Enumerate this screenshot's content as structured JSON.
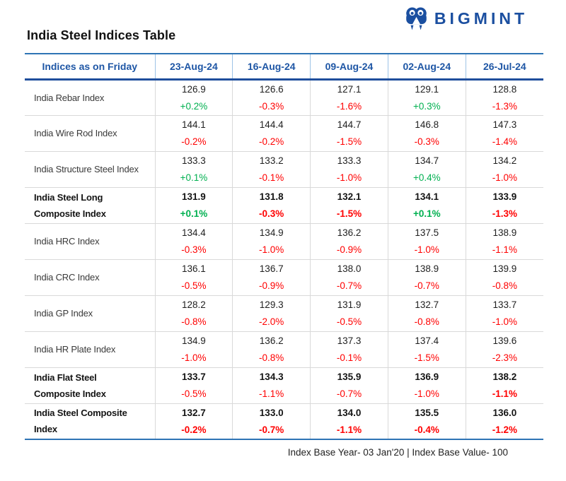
{
  "brand": {
    "name": "BIGMINT",
    "logo_color": "#1b4fa0"
  },
  "colors": {
    "header_blue": "#1e56a5",
    "border_blue_dark": "#1f4e9c",
    "border_blue": "#2e74b5",
    "grid_gray": "#d9d9d9",
    "positive_green": "#00b050",
    "negative_red": "#ff0000"
  },
  "chart_data": {
    "type": "table",
    "title": "India Steel Indices Table",
    "note": "Index Base Year- 03 Jan'20 | Index Base Value- 100",
    "columns": [
      "Indices as on Friday",
      "23-Aug-24",
      "16-Aug-24",
      "09-Aug-24",
      "02-Aug-24",
      "26-Jul-24"
    ],
    "rows": [
      {
        "label_lines": [
          "India Rebar Index"
        ],
        "bold": false,
        "cells": [
          {
            "value": "126.9",
            "change": "+0.2%",
            "trend": "up",
            "bold_change": false
          },
          {
            "value": "126.6",
            "change": "-0.3%",
            "trend": "down",
            "bold_change": false
          },
          {
            "value": "127.1",
            "change": "-1.6%",
            "trend": "down",
            "bold_change": false
          },
          {
            "value": "129.1",
            "change": "+0.3%",
            "trend": "up",
            "bold_change": false
          },
          {
            "value": "128.8",
            "change": "-1.3%",
            "trend": "down",
            "bold_change": false
          }
        ]
      },
      {
        "label_lines": [
          "India Wire Rod Index"
        ],
        "bold": false,
        "cells": [
          {
            "value": "144.1",
            "change": "-0.2%",
            "trend": "down",
            "bold_change": false
          },
          {
            "value": "144.4",
            "change": "-0.2%",
            "trend": "down",
            "bold_change": false
          },
          {
            "value": "144.7",
            "change": "-1.5%",
            "trend": "down",
            "bold_change": false
          },
          {
            "value": "146.8",
            "change": "-0.3%",
            "trend": "down",
            "bold_change": false
          },
          {
            "value": "147.3",
            "change": "-1.4%",
            "trend": "down",
            "bold_change": false
          }
        ]
      },
      {
        "label_lines": [
          "India Structure Steel Index"
        ],
        "bold": false,
        "cells": [
          {
            "value": "133.3",
            "change": "+0.1%",
            "trend": "up",
            "bold_change": false
          },
          {
            "value": "133.2",
            "change": "-0.1%",
            "trend": "down",
            "bold_change": false
          },
          {
            "value": "133.3",
            "change": "-1.0%",
            "trend": "down",
            "bold_change": false
          },
          {
            "value": "134.7",
            "change": "+0.4%",
            "trend": "up",
            "bold_change": false
          },
          {
            "value": "134.2",
            "change": "-1.0%",
            "trend": "down",
            "bold_change": false
          }
        ]
      },
      {
        "label_lines": [
          "India Steel Long",
          "Composite Index"
        ],
        "bold": true,
        "cells": [
          {
            "value": "131.9",
            "change": "+0.1%",
            "trend": "up",
            "bold_change": true
          },
          {
            "value": "131.8",
            "change": "-0.3%",
            "trend": "down",
            "bold_change": true
          },
          {
            "value": "132.1",
            "change": "-1.5%",
            "trend": "down",
            "bold_change": true
          },
          {
            "value": "134.1",
            "change": "+0.1%",
            "trend": "up",
            "bold_change": true
          },
          {
            "value": "133.9",
            "change": "-1.3%",
            "trend": "down",
            "bold_change": true
          }
        ]
      },
      {
        "label_lines": [
          "India HRC Index"
        ],
        "bold": false,
        "cells": [
          {
            "value": "134.4",
            "change": "-0.3%",
            "trend": "down",
            "bold_change": false
          },
          {
            "value": "134.9",
            "change": "-1.0%",
            "trend": "down",
            "bold_change": false
          },
          {
            "value": "136.2",
            "change": "-0.9%",
            "trend": "down",
            "bold_change": false
          },
          {
            "value": "137.5",
            "change": "-1.0%",
            "trend": "down",
            "bold_change": false
          },
          {
            "value": "138.9",
            "change": "-1.1%",
            "trend": "down",
            "bold_change": false
          }
        ]
      },
      {
        "label_lines": [
          "India CRC Index"
        ],
        "bold": false,
        "cells": [
          {
            "value": "136.1",
            "change": "-0.5%",
            "trend": "down",
            "bold_change": false
          },
          {
            "value": "136.7",
            "change": "-0.9%",
            "trend": "down",
            "bold_change": false
          },
          {
            "value": "138.0",
            "change": "-0.7%",
            "trend": "down",
            "bold_change": false
          },
          {
            "value": "138.9",
            "change": "-0.7%",
            "trend": "down",
            "bold_change": false
          },
          {
            "value": "139.9",
            "change": "-0.8%",
            "trend": "down",
            "bold_change": false
          }
        ]
      },
      {
        "label_lines": [
          "India GP Index"
        ],
        "bold": false,
        "cells": [
          {
            "value": "128.2",
            "change": "-0.8%",
            "trend": "down",
            "bold_change": false
          },
          {
            "value": "129.3",
            "change": "-2.0%",
            "trend": "down",
            "bold_change": false
          },
          {
            "value": "131.9",
            "change": "-0.5%",
            "trend": "down",
            "bold_change": false
          },
          {
            "value": "132.7",
            "change": "-0.8%",
            "trend": "down",
            "bold_change": false
          },
          {
            "value": "133.7",
            "change": "-1.0%",
            "trend": "down",
            "bold_change": false
          }
        ]
      },
      {
        "label_lines": [
          "India HR Plate Index"
        ],
        "bold": false,
        "cells": [
          {
            "value": "134.9",
            "change": "-1.0%",
            "trend": "down",
            "bold_change": false
          },
          {
            "value": "136.2",
            "change": "-0.8%",
            "trend": "down",
            "bold_change": false
          },
          {
            "value": "137.3",
            "change": "-0.1%",
            "trend": "down",
            "bold_change": false
          },
          {
            "value": "137.4",
            "change": "-1.5%",
            "trend": "down",
            "bold_change": false
          },
          {
            "value": "139.6",
            "change": "-2.3%",
            "trend": "down",
            "bold_change": false
          }
        ]
      },
      {
        "label_lines": [
          "India Flat Steel",
          "Composite Index"
        ],
        "bold": true,
        "cells": [
          {
            "value": "133.7",
            "change": "-0.5%",
            "trend": "down",
            "bold_change": false
          },
          {
            "value": "134.3",
            "change": "-1.1%",
            "trend": "down",
            "bold_change": false
          },
          {
            "value": "135.9",
            "change": "-0.7%",
            "trend": "down",
            "bold_change": false
          },
          {
            "value": "136.9",
            "change": "-1.0%",
            "trend": "down",
            "bold_change": false
          },
          {
            "value": "138.2",
            "change": "-1.1%",
            "trend": "down",
            "bold_change": true
          }
        ]
      },
      {
        "label_lines": [
          "India Steel Composite",
          "Index"
        ],
        "bold": true,
        "cells": [
          {
            "value": "132.7",
            "change": "-0.2%",
            "trend": "down",
            "bold_change": true
          },
          {
            "value": "133.0",
            "change": "-0.7%",
            "trend": "down",
            "bold_change": true
          },
          {
            "value": "134.0",
            "change": "-1.1%",
            "trend": "down",
            "bold_change": true
          },
          {
            "value": "135.5",
            "change": "-0.4%",
            "trend": "down",
            "bold_change": true
          },
          {
            "value": "136.0",
            "change": "-1.2%",
            "trend": "down",
            "bold_change": true
          }
        ]
      }
    ]
  }
}
